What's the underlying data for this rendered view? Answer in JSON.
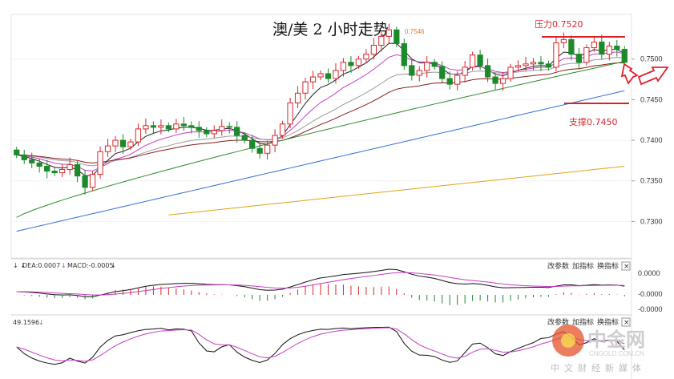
{
  "title": "澳/美 2 小时走势",
  "price_label": "0.7546",
  "annotations": {
    "resistance": "压力0.7520",
    "support": "支撑0.7450"
  },
  "macd_panel": {
    "header_dea": "DEA:0.0007",
    "header_macd": "MACD:-0.0005",
    "ticks": [
      "0.0000",
      "-0.0000",
      "-0.0000"
    ]
  },
  "kdj_panel": {
    "header_value": "49.1596"
  },
  "panel_buttons": {
    "params": "改参数",
    "add": "加指标",
    "switch": "换指标",
    "close": "×"
  },
  "watermark": {
    "cn": "中金网",
    "en": "CNGOLD.COM.CN",
    "sub": "中文财经新媒体"
  },
  "colors": {
    "candle_up": "#d9262b",
    "candle_down": "#1a8a2a",
    "ma_black": "#222222",
    "ma_magenta": "#c63cc6",
    "ma_gray": "#9a9a9a",
    "ma_darkred": "#8b1a1a",
    "ma_green": "#2c8a2c",
    "ma_blue": "#2a6fd6",
    "ma_orange": "#e0a21a"
  },
  "chart_data": {
    "type": "candlestick",
    "title": "澳/美 2 小时走势",
    "y_ticks": [
      "0.7500",
      "0.7450",
      "0.7400",
      "0.7350",
      "0.7300"
    ],
    "ylim": [
      0.7255,
      0.7555
    ],
    "levels": {
      "resistance": 0.752,
      "support": 0.745
    },
    "closes": [
      0.7382,
      0.7376,
      0.7372,
      0.7368,
      0.7362,
      0.736,
      0.7364,
      0.737,
      0.7356,
      0.7342,
      0.7358,
      0.7386,
      0.7393,
      0.74,
      0.7392,
      0.7398,
      0.7414,
      0.7418,
      0.7416,
      0.7418,
      0.7414,
      0.742,
      0.7418,
      0.7416,
      0.7412,
      0.7408,
      0.7412,
      0.7417,
      0.7416,
      0.7406,
      0.74,
      0.739,
      0.7384,
      0.7394,
      0.7406,
      0.742,
      0.7446,
      0.7458,
      0.7472,
      0.7478,
      0.7482,
      0.7476,
      0.7486,
      0.7496,
      0.7492,
      0.75,
      0.7506,
      0.7517,
      0.7528,
      0.7536,
      0.7519,
      0.7492,
      0.748,
      0.7486,
      0.7496,
      0.7491,
      0.7476,
      0.7469,
      0.748,
      0.749,
      0.7505,
      0.7492,
      0.7478,
      0.747,
      0.7476,
      0.749,
      0.7492,
      0.7494,
      0.7496,
      0.7494,
      0.749,
      0.752,
      0.7524,
      0.7506,
      0.7496,
      0.7514,
      0.7521,
      0.7506,
      0.7516,
      0.7512,
      0.7496
    ],
    "moving_averages": [
      {
        "color": "#222222",
        "period": 5
      },
      {
        "color": "#c63cc6",
        "period": 10
      },
      {
        "color": "#9a9a9a",
        "period": 20
      },
      {
        "color": "#8b1a1a",
        "period": 30
      },
      {
        "color": "#2c8a2c",
        "period": 60
      },
      {
        "color": "#2a6fd6",
        "period": 120
      },
      {
        "color": "#e0a21a",
        "period": 250
      }
    ]
  }
}
